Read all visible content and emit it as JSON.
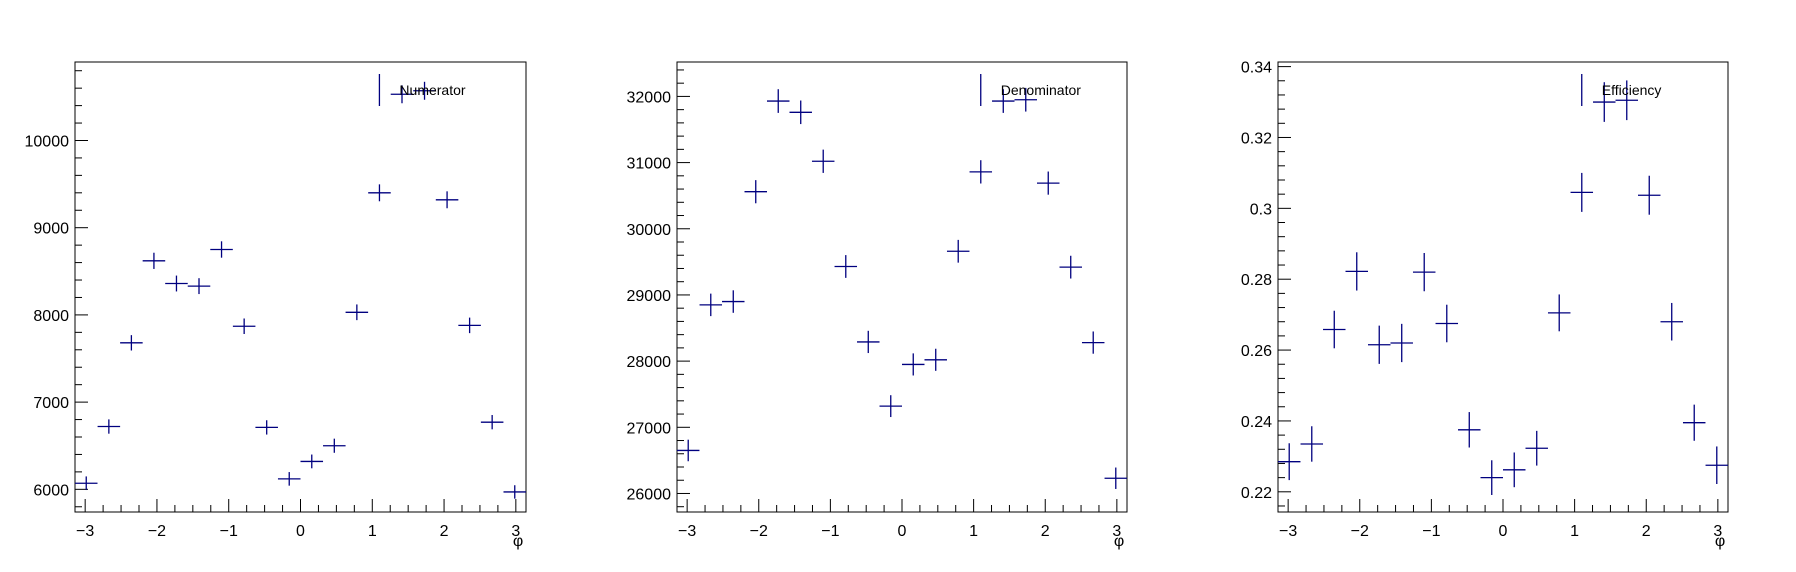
{
  "colors": {
    "marker": "#00007f",
    "axis": "#000000",
    "background": "#ffffff"
  },
  "chart_data": [
    {
      "type": "scatter",
      "xlabel": "φ",
      "xlim": [
        -3.14159,
        3.14159
      ],
      "ylim": [
        5740,
        10900
      ],
      "xticks": [
        -3,
        -2,
        -1,
        0,
        1,
        2,
        3
      ],
      "yticks": [
        6000,
        7000,
        8000,
        9000,
        10000
      ],
      "ytick_labels": [
        "6000",
        "7000",
        "8000",
        "9000",
        "10000"
      ],
      "legend": {
        "label": "Numerator",
        "position": "top-right"
      },
      "series": [
        {
          "name": "Numerator",
          "x": [
            -2.985,
            -2.67,
            -2.356,
            -2.042,
            -1.728,
            -1.414,
            -1.1,
            -0.785,
            -0.471,
            -0.157,
            0.157,
            0.471,
            0.785,
            1.1,
            1.414,
            1.728,
            2.042,
            2.356,
            2.67,
            2.985
          ],
          "x_err": 0.157,
          "y": [
            6070,
            6720,
            7680,
            8620,
            8360,
            8330,
            8750,
            7870,
            6710,
            6120,
            6320,
            6500,
            8030,
            9400,
            10530,
            10570,
            9320,
            7880,
            6770,
            5970
          ],
          "y_err": [
            78,
            82,
            88,
            93,
            91,
            91,
            94,
            89,
            82,
            78,
            79,
            81,
            90,
            97,
            103,
            103,
            97,
            89,
            82,
            77
          ]
        }
      ]
    },
    {
      "type": "scatter",
      "xlabel": "φ",
      "xlim": [
        -3.14159,
        3.14159
      ],
      "ylim": [
        25720,
        32520
      ],
      "xticks": [
        -3,
        -2,
        -1,
        0,
        1,
        2,
        3
      ],
      "yticks": [
        26000,
        27000,
        28000,
        29000,
        30000,
        31000,
        32000
      ],
      "ytick_labels": [
        "26000",
        "27000",
        "28000",
        "29000",
        "30000",
        "31000",
        "32000"
      ],
      "legend": {
        "label": "Denominator",
        "position": "top-right"
      },
      "series": [
        {
          "name": "Denominator",
          "x": [
            -2.985,
            -2.67,
            -2.356,
            -2.042,
            -1.728,
            -1.414,
            -1.1,
            -0.785,
            -0.471,
            -0.157,
            0.157,
            0.471,
            0.785,
            1.1,
            1.414,
            1.728,
            2.042,
            2.356,
            2.67,
            2.985
          ],
          "x_err": 0.157,
          "y": [
            26650,
            28850,
            28900,
            30560,
            31930,
            31760,
            31020,
            29430,
            28290,
            27320,
            27950,
            28020,
            29660,
            30860,
            31930,
            31950,
            30690,
            29420,
            28280,
            26230
          ],
          "y_err": [
            163,
            170,
            170,
            175,
            179,
            178,
            176,
            172,
            168,
            165,
            167,
            167,
            172,
            176,
            179,
            179,
            175,
            172,
            168,
            162
          ]
        }
      ]
    },
    {
      "type": "scatter",
      "xlabel": "φ",
      "xlim": [
        -3.14159,
        3.14159
      ],
      "ylim": [
        0.2143,
        0.3413
      ],
      "xticks": [
        -3,
        -2,
        -1,
        0,
        1,
        2,
        3
      ],
      "yticks": [
        0.22,
        0.24,
        0.26,
        0.28,
        0.3,
        0.32,
        0.34
      ],
      "ytick_labels": [
        "0.22",
        "0.24",
        "0.26",
        "0.28",
        "0.3",
        "0.32",
        "0.34"
      ],
      "legend": {
        "label": "Efficiency",
        "position": "top-right"
      },
      "series": [
        {
          "name": "Efficiency",
          "x": [
            -2.985,
            -2.67,
            -2.356,
            -2.042,
            -1.728,
            -1.414,
            -1.1,
            -0.785,
            -0.471,
            -0.157,
            0.157,
            0.471,
            0.785,
            1.1,
            1.414,
            1.728,
            2.042,
            2.356,
            2.67,
            2.985
          ],
          "x_err": 0.157,
          "y": [
            0.2285,
            0.2335,
            0.2658,
            0.2822,
            0.2615,
            0.262,
            0.282,
            0.2675,
            0.2375,
            0.224,
            0.2262,
            0.2323,
            0.2705,
            0.3045,
            0.33,
            0.3305,
            0.3037,
            0.268,
            0.2395,
            0.2275
          ],
          "y_err": [
            0.0052,
            0.005,
            0.0053,
            0.0054,
            0.0054,
            0.0054,
            0.0054,
            0.0053,
            0.005,
            0.0049,
            0.0049,
            0.0049,
            0.0052,
            0.0055,
            0.0056,
            0.0056,
            0.0055,
            0.0053,
            0.0051,
            0.0053
          ]
        }
      ]
    }
  ]
}
